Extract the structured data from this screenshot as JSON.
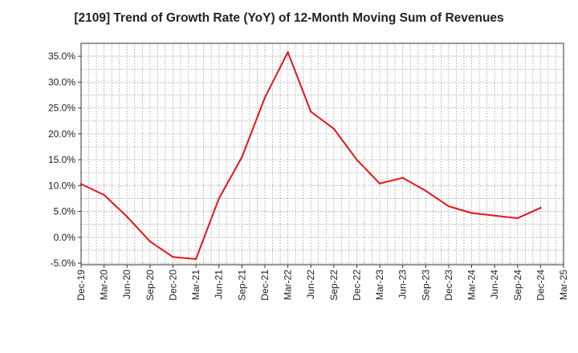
{
  "chart_data": {
    "type": "line",
    "title": "[2109]  Trend of Growth Rate (YoY) of 12-Month Moving Sum of Revenues",
    "xlabel": "",
    "ylabel": "",
    "x": [
      "Dec-19",
      "Mar-20",
      "Jun-20",
      "Sep-20",
      "Dec-20",
      "Mar-21",
      "Jun-21",
      "Sep-21",
      "Dec-21",
      "Mar-22",
      "Jun-22",
      "Sep-22",
      "Dec-22",
      "Mar-23",
      "Jun-23",
      "Sep-23",
      "Dec-23",
      "Mar-24",
      "Jun-24",
      "Sep-24",
      "Dec-24",
      "Mar-25"
    ],
    "y_ticks": [
      "-5.0%",
      "0.0%",
      "5.0%",
      "10.0%",
      "15.0%",
      "20.0%",
      "25.0%",
      "30.0%",
      "35.0%"
    ],
    "ylim": [
      -5.3,
      37.5
    ],
    "grid": true,
    "legend": "none",
    "series": [
      {
        "color": "#e8141a",
        "values": [
          10.3,
          8.2,
          4.0,
          -0.8,
          -3.8,
          -4.2,
          7.5,
          15.5,
          27.0,
          35.8,
          24.3,
          21.0,
          15.0,
          10.4,
          11.5,
          9.0,
          6.0,
          4.7,
          4.2,
          3.7,
          5.7,
          null
        ]
      }
    ]
  }
}
